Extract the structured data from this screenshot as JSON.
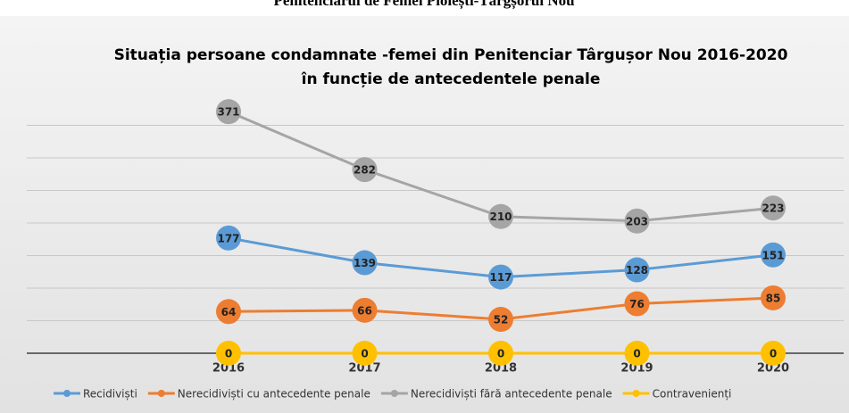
{
  "header": "Penitenciarul de Femei Ploiești-Târgșorul Nou",
  "chart_data": {
    "type": "line",
    "title": [
      "Situația persoane condamnate -femei  din Penitenciar Târgușor Nou 2016-2020",
      "în funcție de antecedentele penale"
    ],
    "categories": [
      "2016",
      "2017",
      "2018",
      "2019",
      "2020"
    ],
    "series": [
      {
        "name": "Recidiviști",
        "color": "#5b9bd5",
        "values": [
          177,
          139,
          117,
          128,
          151
        ]
      },
      {
        "name": "Nerecidiviști cu antecedente penale",
        "color": "#ed7d31",
        "values": [
          64,
          66,
          52,
          76,
          85
        ]
      },
      {
        "name": "Nerecidiviști fără antecedente penale",
        "color": "#a5a5a5",
        "values": [
          371,
          282,
          210,
          203,
          223
        ]
      },
      {
        "name": "Contravenienți",
        "color": "#ffc000",
        "values": [
          0,
          0,
          0,
          0,
          0
        ]
      }
    ],
    "ylim": [
      0,
      400
    ],
    "yticks": [
      0,
      50,
      100,
      150,
      200,
      250,
      300,
      350,
      400
    ],
    "grid": true,
    "legend": "bottom"
  }
}
